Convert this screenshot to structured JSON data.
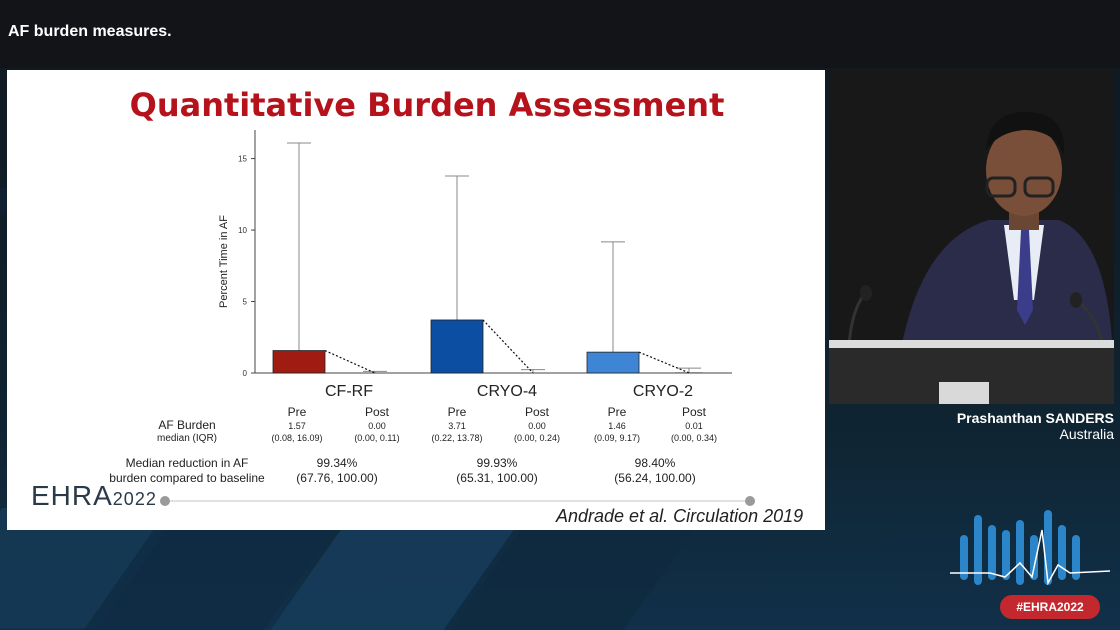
{
  "caption": "AF burden measures.",
  "slide": {
    "title": "Quantitative Burden Assessment",
    "logo": {
      "text": "EHRA",
      "year": "2022"
    },
    "citation": "Andrade et al. Circulation 2019",
    "row_labels": {
      "af_burden": "AF Burden",
      "median_iqr": "median (IQR)",
      "median_reduction_line1": "Median reduction in AF",
      "median_reduction_line2": "burden compared to baseline"
    },
    "groups": [
      {
        "pre_label": "Pre",
        "post_label": "Post",
        "pre_median": "1.57",
        "pre_iqr": "(0.08, 16.09)",
        "post_median": "0.00",
        "post_iqr": "(0.00, 0.11)",
        "reduction": "99.34%",
        "reduction_iqr": "(67.76, 100.00)"
      },
      {
        "pre_label": "Pre",
        "post_label": "Post",
        "pre_median": "3.71",
        "pre_iqr": "(0.22, 13.78)",
        "post_median": "0.00",
        "post_iqr": "(0.00, 0.24)",
        "reduction": "99.93%",
        "reduction_iqr": "(65.31, 100.00)"
      },
      {
        "pre_label": "Pre",
        "post_label": "Post",
        "pre_median": "1.46",
        "pre_iqr": "(0.09, 9.17)",
        "post_median": "0.01",
        "post_iqr": "(0.00, 0.34)",
        "reduction": "98.40%",
        "reduction_iqr": "(56.24, 100.00)"
      }
    ]
  },
  "chart_data": {
    "type": "bar",
    "title": "Quantitative Burden Assessment",
    "xlabel": "",
    "ylabel": "Percent Time in AF",
    "ylim": [
      0,
      17
    ],
    "yticks": [
      0,
      5,
      10,
      15
    ],
    "categories": [
      "CF-RF",
      "CRYO-4",
      "CRYO-2"
    ],
    "colors": [
      "#a01c12",
      "#0b4ea2",
      "#3f85d6"
    ],
    "pre": [
      1.57,
      3.71,
      1.46
    ],
    "pre_upper": [
      16.09,
      13.78,
      9.17
    ],
    "post": [
      0.0,
      0.0,
      0.01
    ],
    "post_upper": [
      0.11,
      0.24,
      0.34
    ]
  },
  "speaker": {
    "name": "Prashanthan SANDERS",
    "country": "Australia"
  },
  "hashtag": "#EHRA2022"
}
